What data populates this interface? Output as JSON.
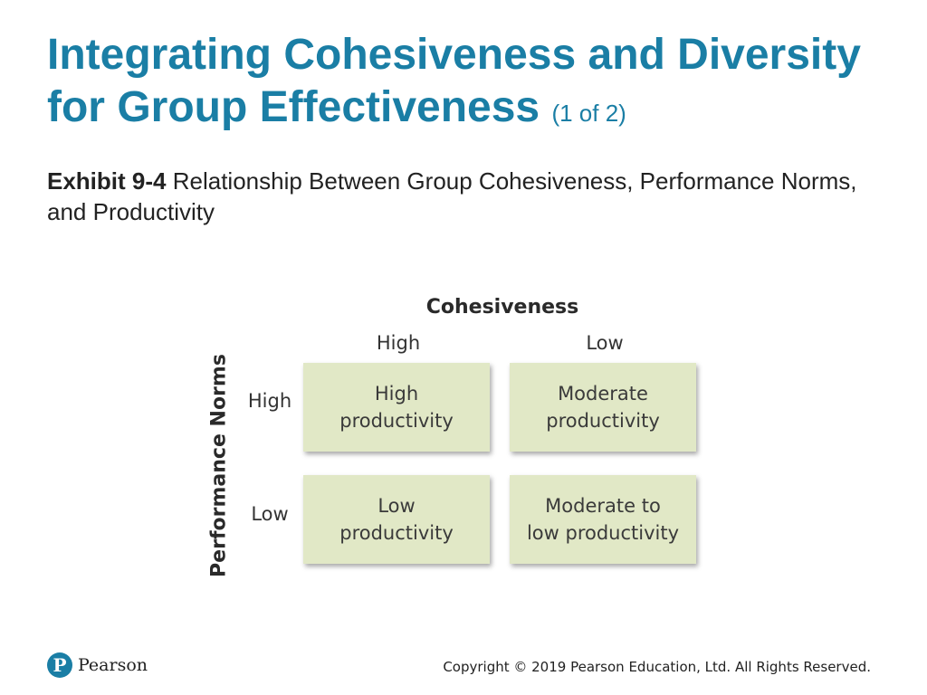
{
  "slide": {
    "title": "Integrating Cohesiveness and Diversity for Group Effectiveness",
    "title_part": "(1 of 2)",
    "exhibit_label": "Exhibit 9-4",
    "exhibit_caption": "Relationship Between Group Cohesiveness, Performance Norms, and Productivity"
  },
  "matrix": {
    "column_axis_title": "Cohesiveness",
    "row_axis_title": "Performance Norms",
    "columns": [
      "High",
      "Low"
    ],
    "rows": [
      "High",
      "Low"
    ],
    "cells": [
      [
        "High\nproductivity",
        "Moderate\nproductivity"
      ],
      [
        "Low\nproductivity",
        "Moderate to\nlow productivity"
      ]
    ]
  },
  "footer": {
    "logo_glyph": "P",
    "logo_text": "Pearson",
    "copyright": "Copyright © 2019 Pearson Education, Ltd. All Rights Reserved."
  },
  "colors": {
    "title": "#1a7ea5",
    "cell_fill": "#e1e8c6"
  }
}
